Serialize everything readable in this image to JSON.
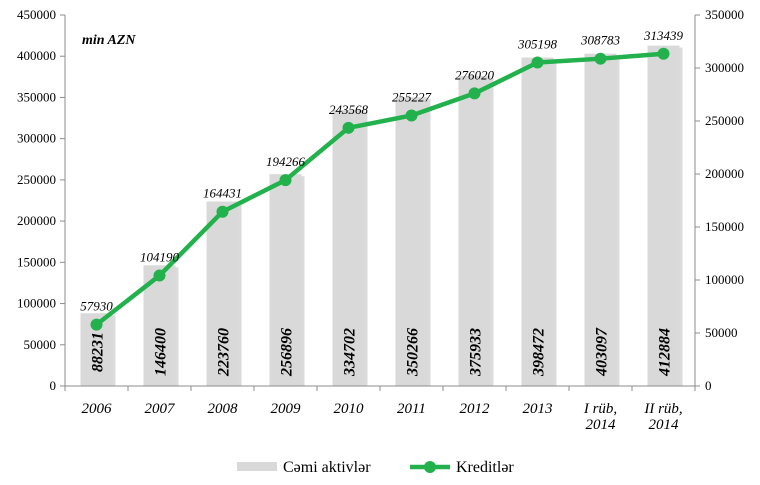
{
  "chart_data": {
    "type": "bar+line",
    "unit_label": "min AZN",
    "categories": [
      [
        "2006"
      ],
      [
        "2007"
      ],
      [
        "2008"
      ],
      [
        "2009"
      ],
      [
        "2010"
      ],
      [
        "2011"
      ],
      [
        "2012"
      ],
      [
        "2013"
      ],
      [
        "I rüb,",
        "2014"
      ],
      [
        "II rüb,",
        "2014"
      ]
    ],
    "series": [
      {
        "name": "Cəmi aktivlər",
        "type": "bar",
        "axis": "left",
        "color": "#d9d9d9",
        "values": [
          88231,
          146400,
          223760,
          256896,
          334702,
          350266,
          375933,
          398472,
          403097,
          412884
        ]
      },
      {
        "name": "Kreditlər",
        "type": "line",
        "axis": "right",
        "color": "#22b14c",
        "values": [
          57930,
          104190,
          164431,
          194266,
          243568,
          255227,
          276020,
          305198,
          308783,
          313439
        ]
      }
    ],
    "y_left": {
      "min": 0,
      "max": 450000,
      "ticks": [
        0,
        50000,
        100000,
        150000,
        200000,
        250000,
        300000,
        350000,
        400000,
        450000
      ]
    },
    "y_right": {
      "min": 0,
      "max": 350000,
      "ticks": [
        0,
        50000,
        100000,
        150000,
        200000,
        250000,
        300000,
        350000
      ]
    },
    "legend_position": "bottom",
    "grid": false
  }
}
